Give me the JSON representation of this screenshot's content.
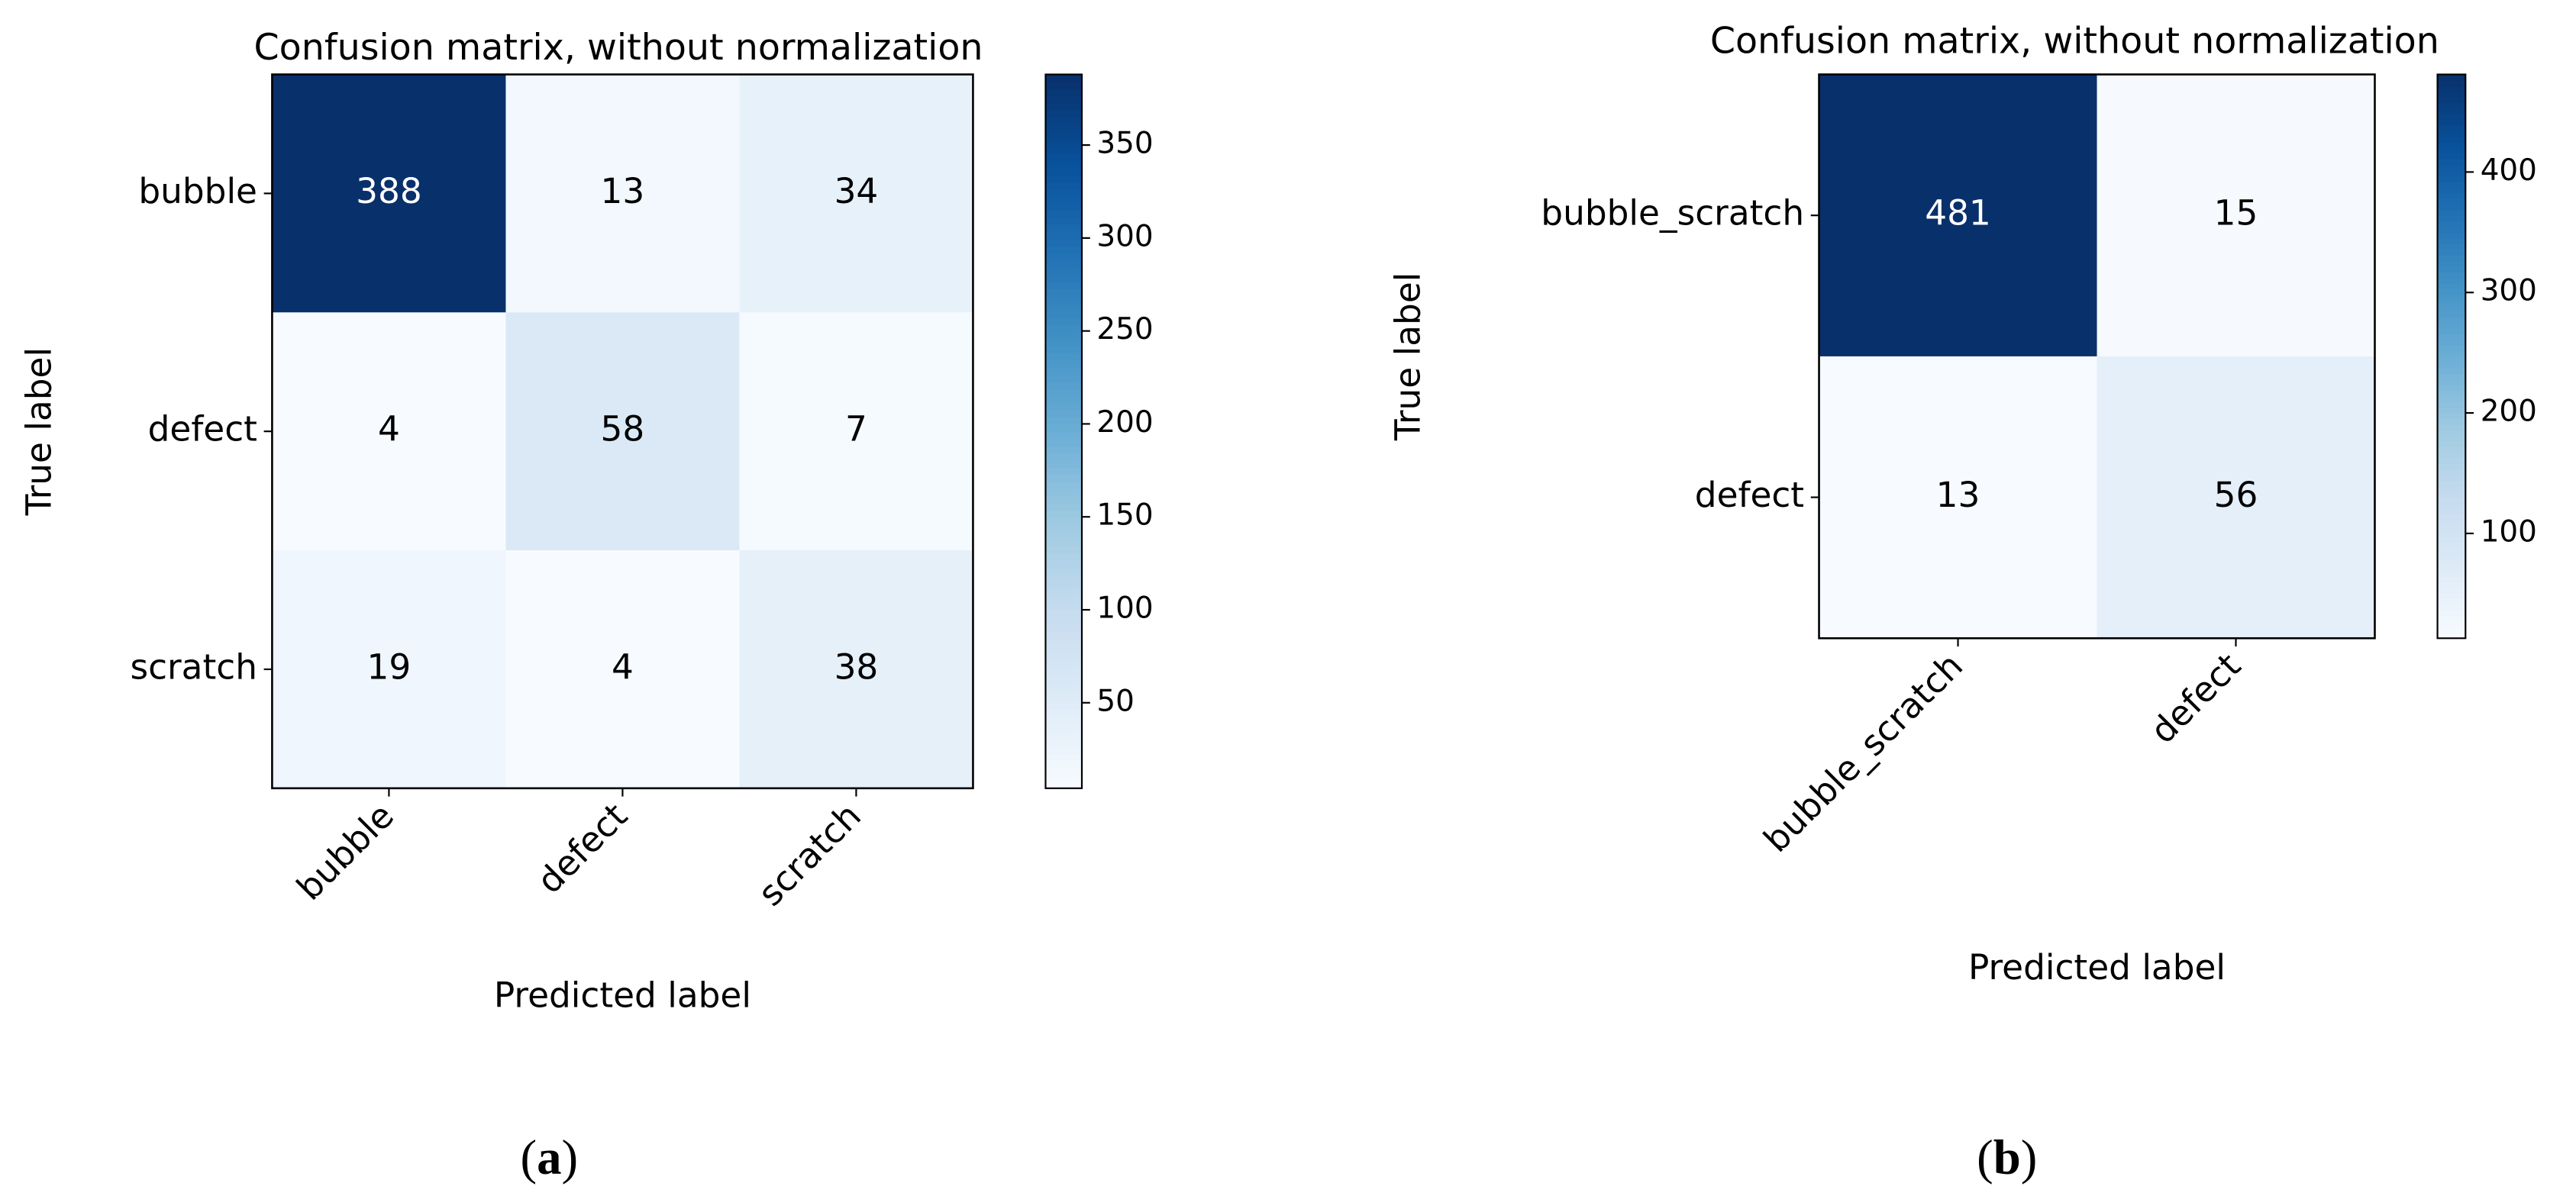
{
  "chart_data": [
    {
      "type": "heatmap",
      "title": "Confusion matrix, without normalization",
      "xlabel": "Predicted label",
      "ylabel": "True label",
      "x_categories": [
        "bubble",
        "defect",
        "scratch"
      ],
      "y_categories": [
        "bubble",
        "defect",
        "scratch"
      ],
      "values": [
        [
          388,
          13,
          34
        ],
        [
          4,
          58,
          7
        ],
        [
          19,
          4,
          38
        ]
      ],
      "colormap": "Blues",
      "clim": [
        4,
        388
      ],
      "cticks": [
        50,
        100,
        150,
        200,
        250,
        300,
        350
      ],
      "caption": "(a)"
    },
    {
      "type": "heatmap",
      "title": "Confusion matrix, without normalization",
      "xlabel": "Predicted label",
      "ylabel": "True label",
      "x_categories": [
        "bubble_scratch",
        "defect"
      ],
      "y_categories": [
        "bubble_scratch",
        "defect"
      ],
      "values": [
        [
          481,
          15
        ],
        [
          13,
          56
        ]
      ],
      "colormap": "Blues",
      "clim": [
        13,
        481
      ],
      "cticks": [
        100,
        200,
        300,
        400
      ],
      "caption": "(b)"
    }
  ]
}
